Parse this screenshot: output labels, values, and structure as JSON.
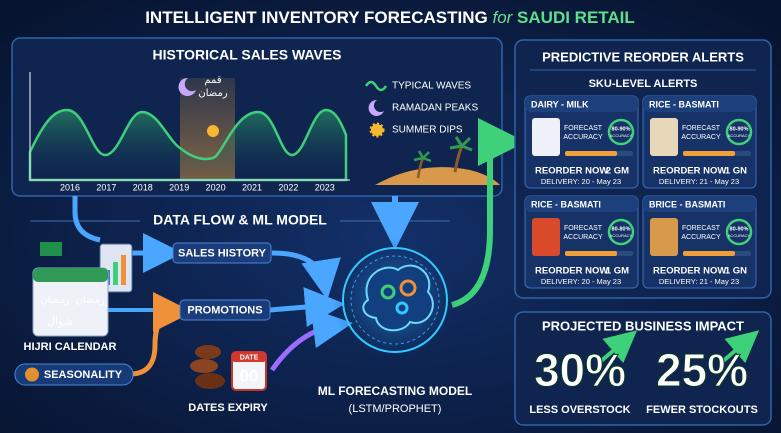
{
  "header": {
    "title_main": "INTELLIGENT INVENTORY FORECASTING",
    "title_for": "for",
    "title_region": "SAUDI RETAIL"
  },
  "historical": {
    "title": "HISTORICAL SALES WAVES",
    "ramadan_label": [
      "قمم",
      "رمضان"
    ],
    "years": [
      "2016",
      "2017",
      "2018",
      "2019",
      "2020",
      "2021",
      "2022",
      "2023"
    ],
    "legend": [
      "TYPICAL WAVES",
      "RAMADAN PEAKS",
      "SUMMER DIPS"
    ]
  },
  "flow": {
    "title": "DATA FLOW & ML MODEL",
    "inputs": [
      "SALES HISTORY",
      "PROMOTIONS"
    ],
    "calendar": {
      "label": "HIJRI CALENDAR",
      "cells": [
        "رمضان",
        "رمضان",
        "شوال"
      ]
    },
    "seasonality": "SEASONALITY",
    "dates": {
      "label": "DATES EXPIRY",
      "icon_title": "DATE",
      "icon_value": "00"
    },
    "model": {
      "title": "ML FORECASTING MODEL",
      "subtitle": "(LSTM/PROPHET)"
    }
  },
  "alerts": {
    "title": "PREDICTIVE REORDER ALERTS",
    "subtitle": "SKU-LEVEL ALERTS",
    "cards": [
      {
        "name": "DAIRY - MILK",
        "accuracy_label": [
          "FORECAST",
          "ACCURACY"
        ],
        "accuracy": "80-90%",
        "accuracy_caption": "ACCURACY",
        "action": "REORDER NOW",
        "quantity": "2 GM",
        "delivery": "DELIVERY: 20 - May 23"
      },
      {
        "name": "RICE - BASMATI",
        "accuracy_label": [
          "FORECAST",
          "ACCURACY"
        ],
        "accuracy": "80-90%",
        "accuracy_caption": "ACCURACY",
        "action": "REORDER NOW",
        "quantity": "1 GN",
        "delivery": "DELIVERY: 21 - May 23"
      },
      {
        "name": "RICE - BASMATI",
        "accuracy_label": [
          "FORECAST",
          "ACCURACY"
        ],
        "accuracy": "80-80%",
        "accuracy_caption": "ACCURACY",
        "action": "REORDER NOW",
        "quantity": "1 GM",
        "delivery": "DELIVERY: 20 - May 23"
      },
      {
        "name": "BRICE - BASMATI",
        "accuracy_label": [
          "FORECAST",
          "ACCURACY"
        ],
        "accuracy": "80-90%",
        "accuracy_caption": "ACCURACY",
        "action": "REORDER NOW",
        "quantity": "1 GN",
        "delivery": "DELIVERY: 21 - May 23"
      }
    ]
  },
  "impact": {
    "title": "PROJECTED BUSINESS IMPACT",
    "metrics": [
      {
        "value": "30%",
        "label": "LESS OVERSTOCK"
      },
      {
        "value": "25%",
        "label": "FEWER STOCKOUTS"
      }
    ]
  }
}
